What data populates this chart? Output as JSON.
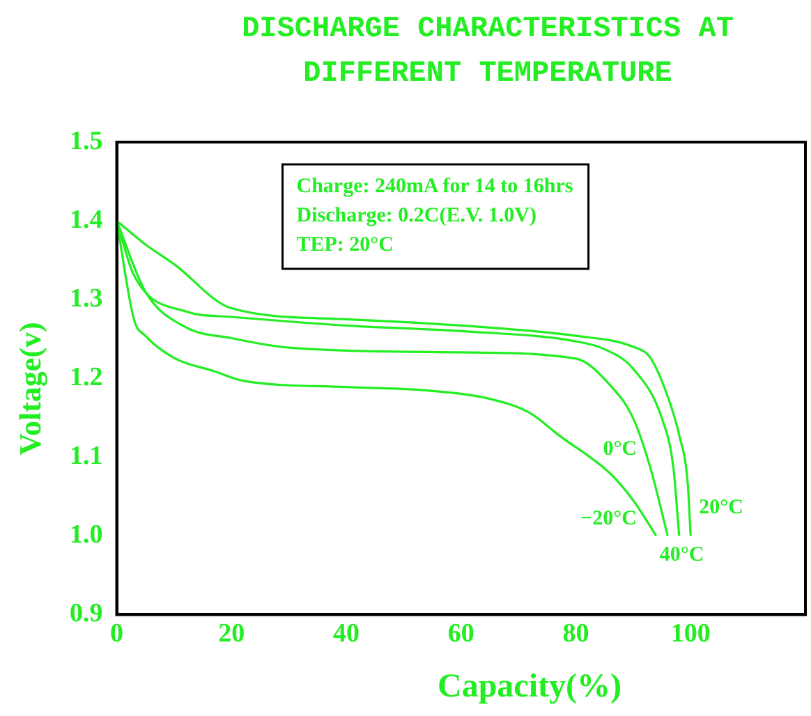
{
  "chart_data": {
    "type": "line",
    "title": "DISCHARGE CHARACTERISTICS AT DIFFERENT TEMPERATURE",
    "xlabel": "Capacity(%)",
    "ylabel": "Voltage(v)",
    "xlim": [
      0,
      120
    ],
    "xticks": [
      0,
      20,
      40,
      60,
      80,
      100
    ],
    "ylim": [
      0.9,
      1.5
    ],
    "yticks": [
      {
        "value": 0.9,
        "label": "0.9"
      },
      {
        "value": 1.0,
        "label": "1.0"
      },
      {
        "value": 1.1,
        "label": "1.1"
      },
      {
        "value": 1.2,
        "label": "1.2"
      },
      {
        "value": 1.3,
        "label": "1.3"
      },
      {
        "value": 1.4,
        "label": "1.4"
      },
      {
        "value": 1.5,
        "label": "1.5"
      }
    ],
    "grid": false,
    "legend": false,
    "marker": "none",
    "line_style": "solid",
    "annotations": [
      "Charge: 240mA for 14 to 16hrs",
      "Discharge: 0.2C(E.V. 1.0V)",
      "TEP: 20°C"
    ],
    "series": [
      {
        "name": "20°C",
        "color": "#22ee22",
        "x": [
          0,
          5,
          10,
          20,
          40,
          60,
          80,
          90,
          93,
          96,
          98,
          99.5,
          100
        ],
        "values": [
          1.4,
          1.37,
          1.345,
          1.289,
          1.275,
          1.267,
          1.254,
          1.24,
          1.226,
          1.177,
          1.128,
          1.066,
          1.0
        ]
      },
      {
        "name": "40°C",
        "color": "#22ee22",
        "x": [
          0,
          3,
          12,
          20,
          40,
          60,
          80,
          85,
          90,
          95,
          97,
          98
        ],
        "values": [
          1.4,
          1.331,
          1.285,
          1.278,
          1.267,
          1.26,
          1.247,
          1.237,
          1.212,
          1.149,
          1.086,
          1.0
        ]
      },
      {
        "name": "0°C",
        "color": "#22ee22",
        "x": [
          0,
          5,
          12,
          20,
          30,
          60,
          80,
          86,
          90,
          93,
          96
        ],
        "values": [
          1.4,
          1.31,
          1.265,
          1.251,
          1.239,
          1.233,
          1.225,
          1.191,
          1.149,
          1.086,
          1.0
        ]
      },
      {
        "name": "−20°C",
        "color": "#22ee22",
        "x": [
          0,
          3,
          5,
          10,
          17,
          22,
          40,
          55,
          65,
          72,
          77,
          86,
          90,
          94
        ],
        "values": [
          1.4,
          1.275,
          1.254,
          1.226,
          1.209,
          1.197,
          1.189,
          1.184,
          1.174,
          1.156,
          1.128,
          1.079,
          1.045,
          1.0
        ]
      }
    ]
  }
}
